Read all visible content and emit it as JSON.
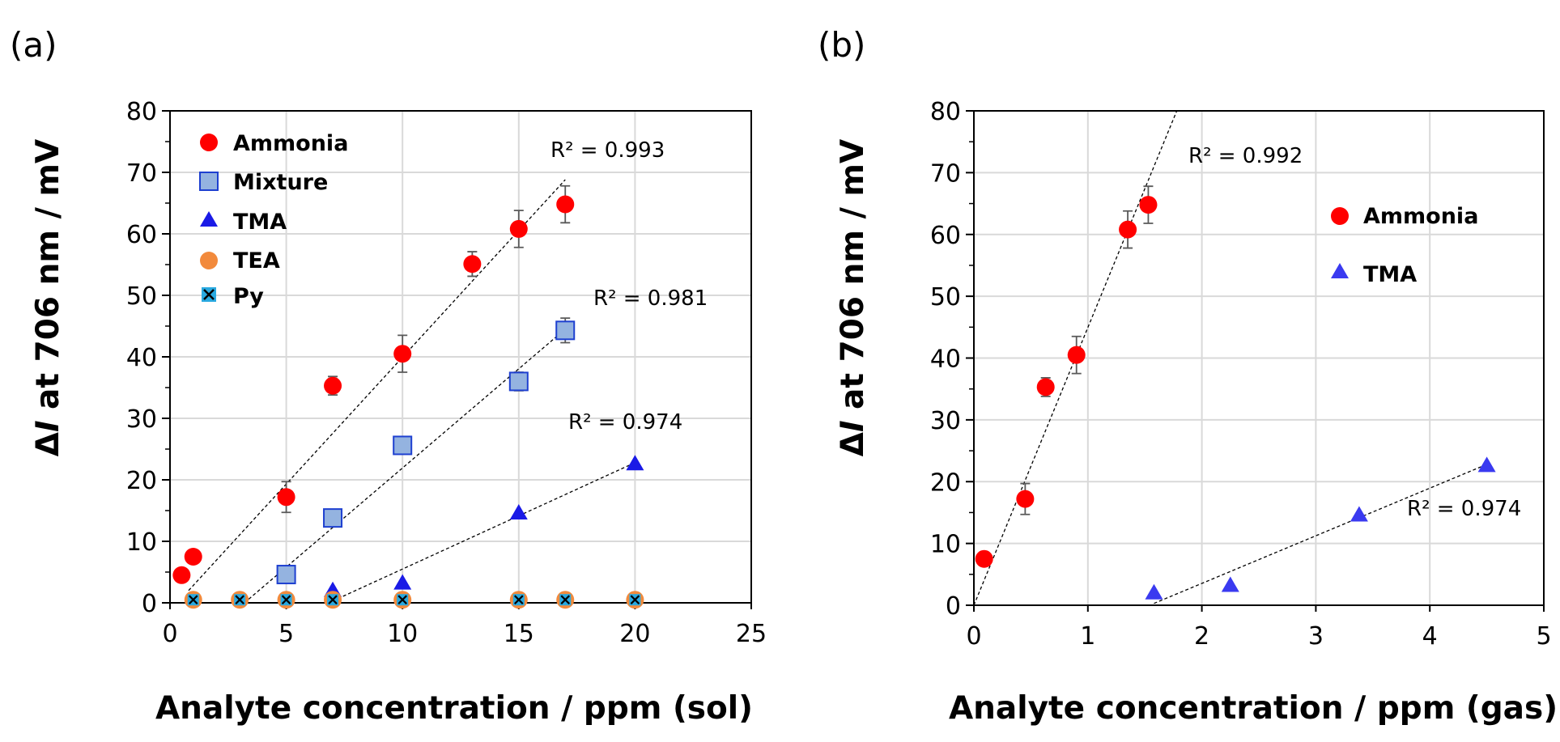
{
  "chart_data": [
    {
      "type": "scatter",
      "panel_label": "(a)",
      "xlabel": "Analyte concentration / ppm (sol)",
      "ylabel_pre": "Δ",
      "ylabel_italic": "I",
      "ylabel_post": " at 706 nm / mV",
      "xlim": [
        0,
        25
      ],
      "ylim": [
        0,
        80
      ],
      "xticks": [
        "0",
        "5",
        "10",
        "15",
        "20",
        "25"
      ],
      "yticks": [
        "0",
        "10",
        "20",
        "30",
        "40",
        "50",
        "60",
        "70",
        "80"
      ],
      "grid": true,
      "legend_position": "top-left",
      "series": [
        {
          "name": "Ammonia",
          "marker": "circle",
          "color": "#ff0000",
          "x": [
            0.5,
            1,
            5,
            7,
            10,
            13,
            15,
            17
          ],
          "y": [
            4.5,
            7.5,
            17.2,
            35.3,
            40.5,
            55.1,
            60.8,
            64.8
          ],
          "err": [
            0,
            0,
            2.5,
            1.5,
            3.0,
            2.0,
            3.0,
            3.0
          ]
        },
        {
          "name": "Mixture",
          "marker": "square",
          "color": "#94b3e0",
          "stroke": "#1e40d0",
          "x": [
            5,
            7,
            10,
            15,
            17
          ],
          "y": [
            4.6,
            13.8,
            25.6,
            36.0,
            44.3
          ],
          "err": [
            0,
            0,
            0,
            1.5,
            2.0
          ]
        },
        {
          "name": "TMA",
          "marker": "triangle",
          "color": "#1a1ae6",
          "x": [
            7,
            10,
            15,
            20
          ],
          "y": [
            2.0,
            3.2,
            14.6,
            22.6
          ],
          "err": [
            0,
            0,
            0,
            0
          ]
        },
        {
          "name": "TEA",
          "marker": "circle",
          "color": "#f28a3c",
          "x": [
            1,
            3,
            5,
            7,
            10,
            15,
            17,
            20
          ],
          "y": [
            0.5,
            0.5,
            0.5,
            0.5,
            0.5,
            0.5,
            0.5,
            0.5
          ],
          "err": []
        },
        {
          "name": "Py",
          "marker": "x-square",
          "color": "#29a9e0",
          "x": [
            1,
            3,
            5,
            7,
            10,
            15,
            17,
            20
          ],
          "y": [
            0.5,
            0.5,
            0.5,
            0.5,
            0.5,
            0.5,
            0.5,
            0.5
          ],
          "err": []
        }
      ],
      "fits": [
        {
          "label": "R² = 0.993",
          "x": [
            0.8,
            17
          ],
          "y": [
            2.0,
            68.8
          ]
        },
        {
          "label": "R² = 0.981",
          "x": [
            3.2,
            17
          ],
          "y": [
            0.0,
            44.5
          ]
        },
        {
          "label": "R² = 0.974",
          "x": [
            7,
            20
          ],
          "y": [
            0.3,
            22.8
          ]
        }
      ]
    },
    {
      "type": "scatter",
      "panel_label": "(b)",
      "xlabel": "Analyte concentration / ppm (gas)",
      "ylabel_pre": "Δ",
      "ylabel_italic": "I",
      "ylabel_post": " at 706 nm / mV",
      "xlim": [
        0,
        5
      ],
      "ylim": [
        0,
        80
      ],
      "xticks": [
        "0",
        "1",
        "2",
        "3",
        "4",
        "5"
      ],
      "yticks": [
        "0",
        "10",
        "20",
        "30",
        "40",
        "50",
        "60",
        "70",
        "80"
      ],
      "grid": true,
      "legend_position": "right",
      "series": [
        {
          "name": "Ammonia",
          "marker": "circle",
          "color": "#ff0000",
          "x": [
            0.09,
            0.45,
            0.63,
            0.9,
            1.35,
            1.53
          ],
          "y": [
            7.5,
            17.2,
            35.3,
            40.5,
            60.8,
            64.8
          ],
          "err": [
            0,
            2.5,
            1.5,
            3.0,
            3.0,
            3.0
          ]
        },
        {
          "name": "TMA",
          "marker": "triangle",
          "color": "#3a3af0",
          "x": [
            1.58,
            2.25,
            3.38,
            4.5
          ],
          "y": [
            2.0,
            3.2,
            14.6,
            22.6
          ],
          "err": [
            0,
            0,
            0,
            0
          ]
        }
      ],
      "fits": [
        {
          "label": "R² = 0.992",
          "x": [
            0.0,
            1.78
          ],
          "y": [
            0.0,
            80
          ]
        },
        {
          "label": "R² = 0.974",
          "x": [
            1.58,
            4.5
          ],
          "y": [
            0.3,
            22.8
          ]
        }
      ]
    }
  ]
}
